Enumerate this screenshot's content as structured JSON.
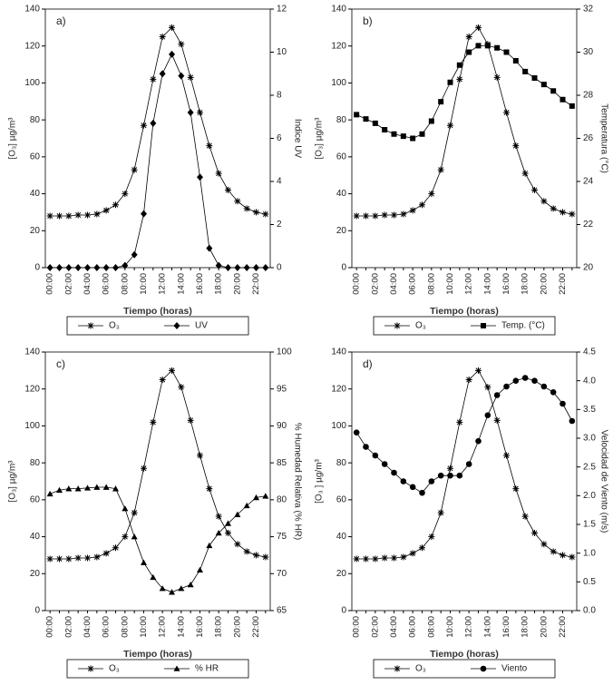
{
  "chart_data": [
    {
      "type": "line",
      "title": "a)",
      "categories": [
        "00:00",
        null,
        "02:00",
        null,
        "04:00",
        null,
        "06:00",
        null,
        "08:00",
        null,
        "10:00",
        null,
        "12:00",
        null,
        "14:00",
        null,
        "16:00",
        null,
        "18:00",
        null,
        "20:00",
        null,
        "22:00",
        null
      ],
      "xlabel": "Tiempo (horas)",
      "ylabel": "[O₃] µg/m³",
      "y2label": "Indice UV",
      "ylim": [
        0,
        140
      ],
      "yticks": [
        0,
        20,
        40,
        60,
        80,
        100,
        120,
        140
      ],
      "y2lim": [
        0,
        12
      ],
      "y2ticks": [
        0,
        2,
        4,
        6,
        8,
        10,
        12
      ],
      "series": [
        {
          "name": "O₃",
          "color": "#000000",
          "marker": "star",
          "values": [
            28,
            28,
            28,
            28.5,
            28.5,
            29,
            31,
            34,
            40,
            53,
            77,
            102,
            125,
            130,
            121,
            103,
            84,
            66,
            51,
            42,
            36,
            32,
            30,
            29
          ]
        },
        {
          "name": "UV",
          "color": "#000000",
          "marker": "diamond",
          "axis": "y2",
          "values": [
            0,
            0,
            0,
            0,
            0,
            0,
            0,
            0,
            0.1,
            0.6,
            2.5,
            6.7,
            9,
            9.9,
            8.9,
            7.2,
            4.2,
            0.9,
            0.1,
            0,
            0,
            0,
            0,
            0
          ]
        }
      ]
    },
    {
      "type": "line",
      "title": "b)",
      "categories": [
        "00:00",
        null,
        "02:00",
        null,
        "04:00",
        null,
        "06:00",
        null,
        "08:00",
        null,
        "10:00",
        null,
        "12:00",
        null,
        "14:00",
        null,
        "16:00",
        null,
        "18:00",
        null,
        "20:00",
        null,
        "22:00",
        null
      ],
      "xlabel": "Tiempo (horas)",
      "ylabel": "[O₃] µg/m³",
      "y2label": "Temperatura (°C)",
      "ylim": [
        0,
        140
      ],
      "yticks": [
        0,
        20,
        40,
        60,
        80,
        100,
        120,
        140
      ],
      "y2lim": [
        20,
        32
      ],
      "y2ticks": [
        20,
        22,
        24,
        26,
        28,
        30,
        32
      ],
      "series": [
        {
          "name": "O₃",
          "color": "#000000",
          "marker": "star",
          "values": [
            28,
            28,
            28,
            28.5,
            28.5,
            29,
            31,
            34,
            40,
            53,
            77,
            102,
            125,
            130,
            121,
            103,
            84,
            66,
            51,
            42,
            36,
            32,
            30,
            29
          ]
        },
        {
          "name": "Temp. (°C)",
          "color": "#000000",
          "marker": "square",
          "axis": "y2",
          "values": [
            27.1,
            26.9,
            26.7,
            26.4,
            26.2,
            26.1,
            26,
            26.2,
            26.8,
            27.7,
            28.6,
            29.4,
            30,
            30.3,
            30.3,
            30.2,
            30,
            29.6,
            29.1,
            28.8,
            28.5,
            28.2,
            27.8,
            27.5
          ]
        }
      ]
    },
    {
      "type": "line",
      "title": "c)",
      "categories": [
        "00:00",
        null,
        "02:00",
        null,
        "04:00",
        null,
        "06:00",
        null,
        "08:00",
        null,
        "10:00",
        null,
        "12:00",
        null,
        "14:00",
        null,
        "16:00",
        null,
        "18:00",
        null,
        "20:00",
        null,
        "22:00",
        null
      ],
      "xlabel": "Tiempo (horas)",
      "ylabel": "[O₃] µg/m³",
      "y2label": "% Humedad Relativa (% HR)",
      "ylim": [
        0,
        140
      ],
      "yticks": [
        0,
        20,
        40,
        60,
        80,
        100,
        120,
        140
      ],
      "y2lim": [
        65,
        100
      ],
      "y2ticks": [
        65,
        70,
        75,
        80,
        85,
        90,
        95,
        100
      ],
      "series": [
        {
          "name": "O₃",
          "color": "#000000",
          "marker": "star",
          "values": [
            28,
            28,
            28,
            28.5,
            28.5,
            29,
            31,
            34,
            40,
            53,
            77,
            102,
            125,
            130,
            121,
            103,
            84,
            66,
            51,
            42,
            36,
            32,
            30,
            29
          ]
        },
        {
          "name": "% HR",
          "color": "#000000",
          "marker": "triangle",
          "axis": "y2",
          "values": [
            80.8,
            81.3,
            81.5,
            81.5,
            81.6,
            81.7,
            81.7,
            81.5,
            78.8,
            75,
            71.5,
            69.5,
            68,
            67.5,
            68,
            68.5,
            70.5,
            73.8,
            75.5,
            76.8,
            78,
            79.2,
            80.3,
            80.5
          ]
        }
      ]
    },
    {
      "type": "line",
      "title": "d)",
      "categories": [
        "00:00",
        null,
        "02:00",
        null,
        "04:00",
        null,
        "06:00",
        null,
        "08:00",
        null,
        "10:00",
        null,
        "12:00",
        null,
        "14:00",
        null,
        "16:00",
        null,
        "18:00",
        null,
        "20:00",
        null,
        "22:00",
        null
      ],
      "xlabel": "Tiempo (horas)",
      "ylabel": "[O₃ ] µg/m³",
      "y2label": "Velocidad de Viento (m/s)",
      "ylim": [
        0,
        140
      ],
      "yticks": [
        0,
        20,
        40,
        60,
        80,
        100,
        120,
        140
      ],
      "y2lim": [
        0,
        4.5
      ],
      "y2ticks": [
        {
          "value": 0,
          "label": "0.0"
        },
        {
          "value": 0.5,
          "label": "0.5"
        },
        {
          "value": 1,
          "label": "1.0"
        },
        {
          "value": 1.5,
          "label": "1.5"
        },
        {
          "value": 2,
          "label": "2.0"
        },
        {
          "value": 2.5,
          "label": "2.5"
        },
        {
          "value": 3,
          "label": "3.0"
        },
        {
          "value": 3.5,
          "label": "3.5"
        },
        {
          "value": 4,
          "label": "4.0"
        },
        {
          "value": 4.5,
          "label": "4.5"
        }
      ],
      "series": [
        {
          "name": "O₃",
          "color": "#000000",
          "marker": "star",
          "values": [
            28,
            28,
            28,
            28.5,
            28.5,
            29,
            31,
            34,
            40,
            53,
            77,
            102,
            125,
            130,
            121,
            103,
            84,
            66,
            51,
            42,
            36,
            32,
            30,
            29
          ]
        },
        {
          "name": "Viento",
          "color": "#000000",
          "marker": "circle",
          "axis": "y2",
          "values": [
            3.1,
            2.85,
            2.7,
            2.55,
            2.4,
            2.25,
            2.15,
            2.05,
            2.25,
            2.35,
            2.35,
            2.35,
            2.55,
            2.95,
            3.4,
            3.75,
            3.9,
            4,
            4.05,
            4,
            3.9,
            3.8,
            3.6,
            3.3
          ]
        }
      ]
    }
  ]
}
